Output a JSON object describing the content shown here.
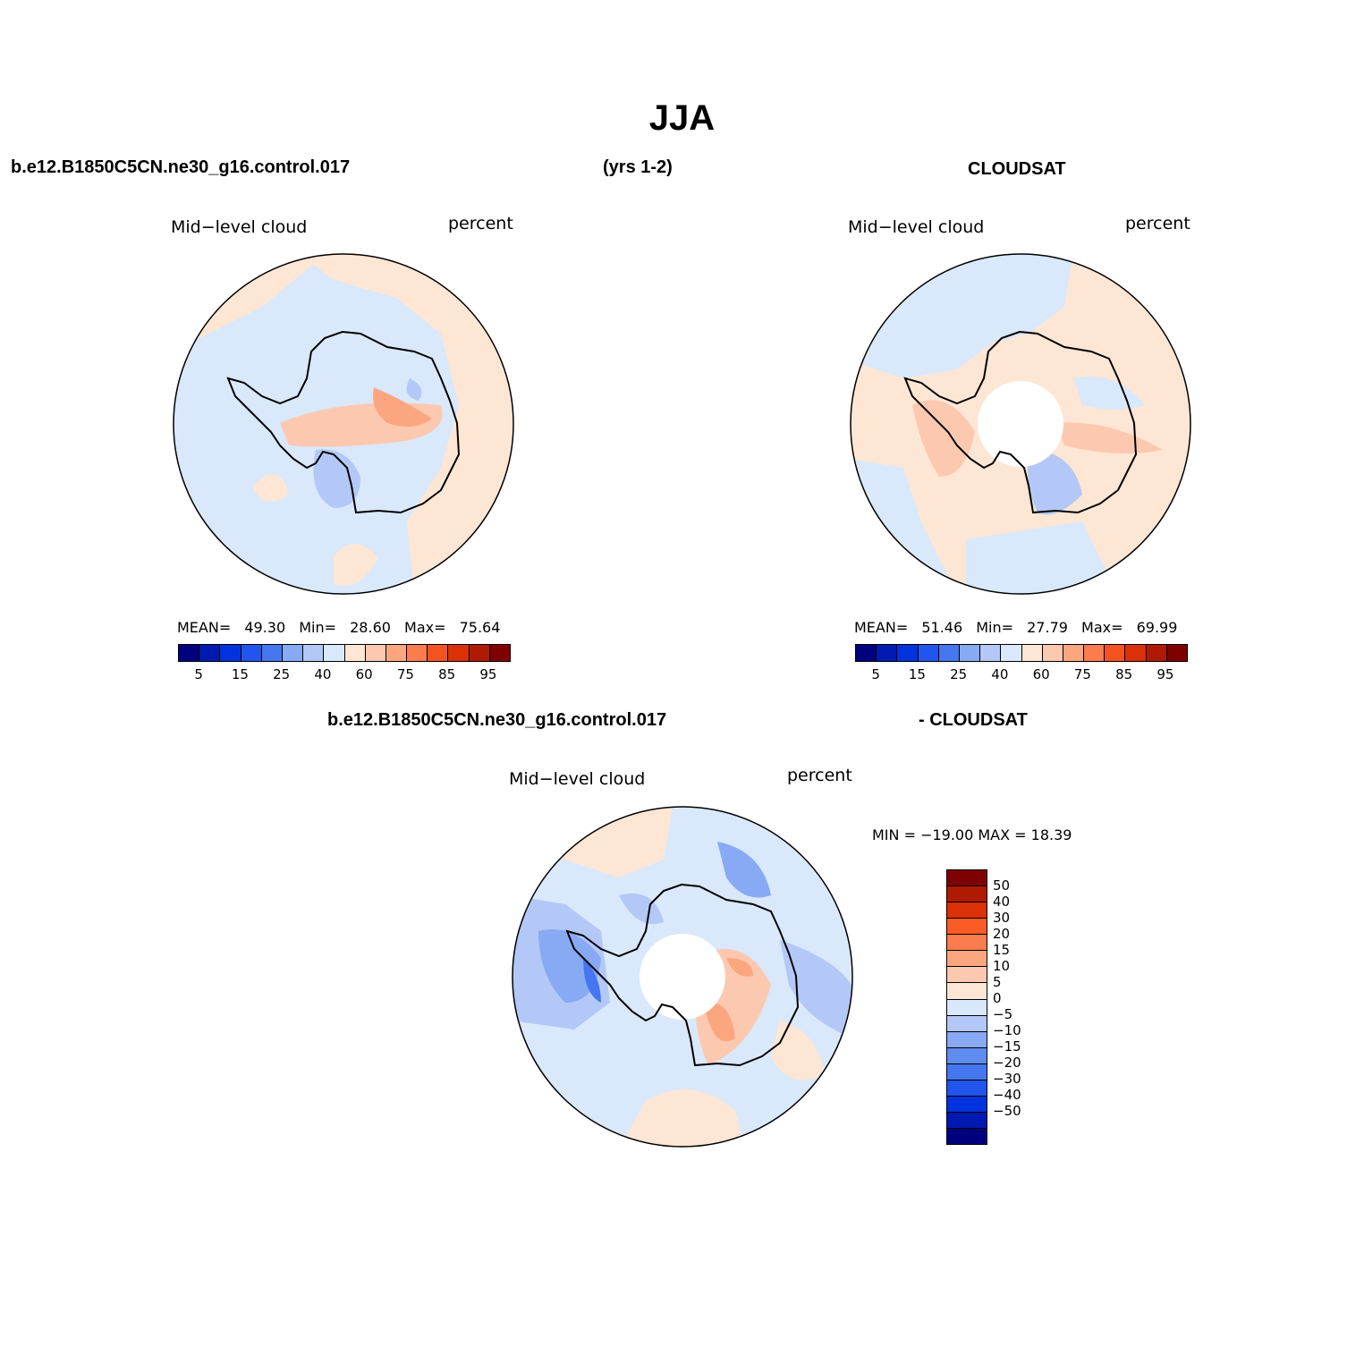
{
  "title": "JJA",
  "header": {
    "model_name": "b.e12.B1850C5CN.ne30_g16.control.017",
    "years": "(yrs 1-2)",
    "obs_name": "CLOUDSAT",
    "diff_model": "b.e12.B1850C5CN.ne30_g16.control.017",
    "diff_obs": "- CLOUDSAT"
  },
  "panels": [
    {
      "id": "model",
      "variable": "Mid−level cloud",
      "units": "percent",
      "stats": {
        "mean_label": "MEAN=",
        "mean": "49.30",
        "min_label": "Min=",
        "min": "28.60",
        "max_label": "Max=",
        "max": "75.64"
      },
      "has_polar_hole": false
    },
    {
      "id": "obs",
      "variable": "Mid−level cloud",
      "units": "percent",
      "stats": {
        "mean_label": "MEAN=",
        "mean": "51.46",
        "min_label": "Min=",
        "min": "27.79",
        "max_label": "Max=",
        "max": "69.99"
      },
      "has_polar_hole": true
    },
    {
      "id": "diff",
      "variable": "Mid−level cloud",
      "units": "percent",
      "stats": {
        "text": "MIN = −19.00 MAX =   18.39"
      },
      "has_polar_hole": true
    }
  ],
  "colorbar_abs": {
    "colors": [
      "#00007f",
      "#0019b0",
      "#0033dd",
      "#2255ee",
      "#4477f0",
      "#88a9f4",
      "#b3c8f6",
      "#d9e8fb",
      "#fee6d4",
      "#fcc9b0",
      "#fca680",
      "#fb7c4c",
      "#f3541f",
      "#da3106",
      "#b01a00",
      "#7f0000"
    ],
    "tick_labels": [
      "5",
      "15",
      "25",
      "40",
      "60",
      "75",
      "85",
      "95"
    ]
  },
  "colorbar_diff": {
    "colors": [
      "#7f0000",
      "#b01a00",
      "#da3106",
      "#fb5c26",
      "#fb7c4c",
      "#fca680",
      "#fcc9b0",
      "#fee6d4",
      "#d9e8fb",
      "#b3c8f6",
      "#88a9f4",
      "#5f8cf0",
      "#4477f0",
      "#2255ee",
      "#0033dd",
      "#0019b0",
      "#00007f"
    ],
    "tick_labels": [
      "50",
      "40",
      "30",
      "20",
      "15",
      "10",
      "5",
      "0",
      "−5",
      "−10",
      "−15",
      "−20",
      "−30",
      "−40",
      "−50"
    ]
  }
}
